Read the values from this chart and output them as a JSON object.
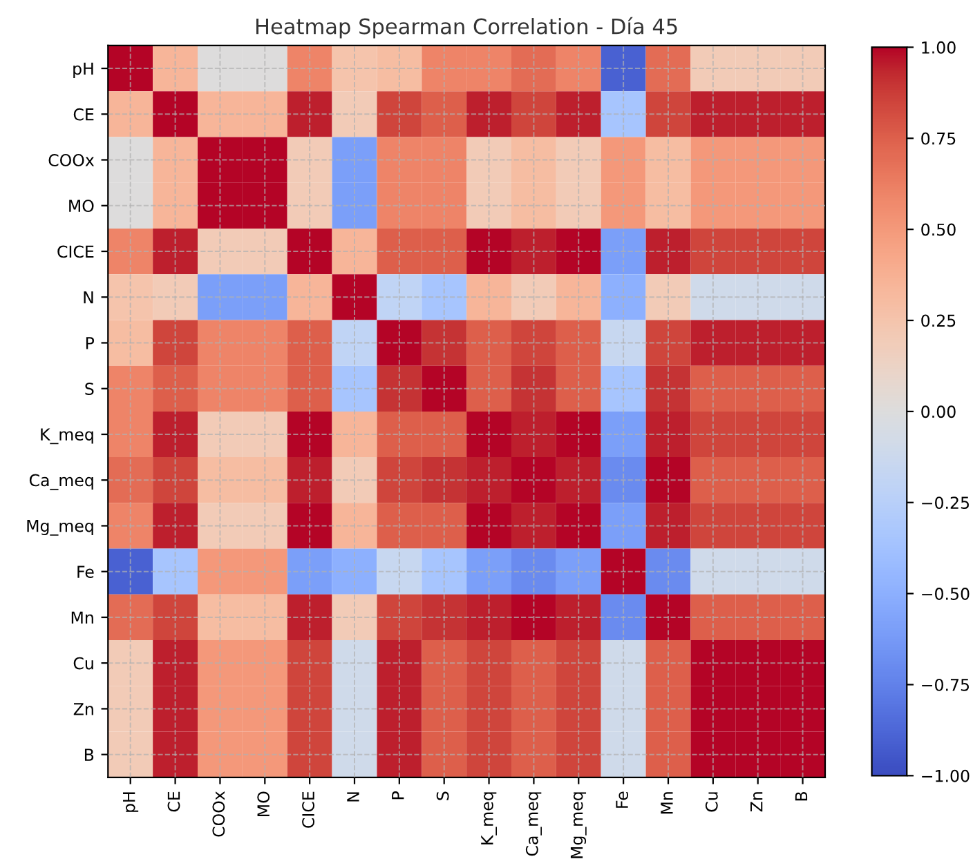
{
  "chart_data": {
    "type": "heatmap",
    "title": "Heatmap Spearman Correlation - Día 45",
    "categories": [
      "pH",
      "CE",
      "COOx",
      "MO",
      "CICE",
      "N",
      "P",
      "S",
      "K_meq",
      "Ca_meq",
      "Mg_meq",
      "Fe",
      "Mn",
      "Cu",
      "Zn",
      "B"
    ],
    "y_categories": [
      "pH",
      "CE",
      "COOx",
      "MO",
      "CICE",
      "N",
      "P",
      "S",
      "K_meq",
      "Ca_meq",
      "Mg_meq",
      "Fe",
      "Mn",
      "Cu",
      "Zn",
      "B"
    ],
    "cells": [
      [
        1,
        0.35,
        0,
        0,
        0.6,
        0.25,
        0.3,
        0.6,
        0.6,
        0.7,
        0.6,
        -0.9,
        0.7,
        0.2,
        0.2,
        0.2
      ],
      [
        0.35,
        1,
        0.35,
        0.35,
        0.95,
        0.2,
        0.85,
        0.75,
        0.95,
        0.85,
        0.95,
        -0.35,
        0.85,
        0.95,
        0.95,
        0.95
      ],
      [
        0,
        0.35,
        1,
        1,
        0.2,
        -0.6,
        0.6,
        0.6,
        0.2,
        0.3,
        0.2,
        0.5,
        0.3,
        0.5,
        0.5,
        0.5
      ],
      [
        0,
        0.35,
        1,
        1,
        0.2,
        -0.6,
        0.6,
        0.6,
        0.2,
        0.3,
        0.2,
        0.5,
        0.3,
        0.5,
        0.5,
        0.5
      ],
      [
        0.6,
        0.95,
        0.2,
        0.2,
        1,
        0.35,
        0.75,
        0.75,
        1,
        0.95,
        1,
        -0.6,
        0.95,
        0.85,
        0.85,
        0.85
      ],
      [
        0.25,
        0.2,
        -0.6,
        -0.6,
        0.35,
        1,
        -0.2,
        -0.35,
        0.35,
        0.2,
        0.35,
        -0.5,
        0.2,
        -0.1,
        -0.1,
        -0.1
      ],
      [
        0.3,
        0.85,
        0.6,
        0.6,
        0.75,
        -0.2,
        1,
        0.9,
        0.75,
        0.85,
        0.75,
        -0.15,
        0.85,
        0.95,
        0.95,
        0.95
      ],
      [
        0.6,
        0.75,
        0.6,
        0.6,
        0.75,
        -0.35,
        0.9,
        1,
        0.75,
        0.9,
        0.75,
        -0.35,
        0.9,
        0.75,
        0.75,
        0.75
      ],
      [
        0.6,
        0.95,
        0.2,
        0.2,
        1,
        0.35,
        0.75,
        0.75,
        1,
        0.95,
        1,
        -0.6,
        0.95,
        0.85,
        0.85,
        0.85
      ],
      [
        0.7,
        0.85,
        0.3,
        0.3,
        0.95,
        0.2,
        0.85,
        0.9,
        0.95,
        1,
        0.95,
        -0.7,
        1,
        0.75,
        0.75,
        0.75
      ],
      [
        0.6,
        0.95,
        0.2,
        0.2,
        1,
        0.35,
        0.75,
        0.75,
        1,
        0.95,
        1,
        -0.6,
        0.95,
        0.85,
        0.85,
        0.85
      ],
      [
        -0.9,
        -0.35,
        0.5,
        0.5,
        -0.6,
        -0.5,
        -0.15,
        -0.35,
        -0.6,
        -0.7,
        -0.6,
        1,
        -0.7,
        -0.1,
        -0.1,
        -0.1
      ],
      [
        0.7,
        0.85,
        0.3,
        0.3,
        0.95,
        0.2,
        0.85,
        0.9,
        0.95,
        1,
        0.95,
        -0.7,
        1,
        0.75,
        0.75,
        0.75
      ],
      [
        0.2,
        0.95,
        0.5,
        0.5,
        0.85,
        -0.1,
        0.95,
        0.75,
        0.85,
        0.75,
        0.85,
        -0.1,
        0.75,
        1,
        1,
        1
      ],
      [
        0.2,
        0.95,
        0.5,
        0.5,
        0.85,
        -0.1,
        0.95,
        0.75,
        0.85,
        0.75,
        0.85,
        -0.1,
        0.75,
        1,
        1,
        1
      ],
      [
        0.2,
        0.95,
        0.5,
        0.5,
        0.85,
        -0.1,
        0.95,
        0.75,
        0.85,
        0.75,
        0.85,
        -0.1,
        0.75,
        1,
        1,
        1
      ]
    ],
    "clim": [
      -1.0,
      1.0
    ],
    "cticks": [
      {
        "value": -1,
        "label": "−1.00"
      },
      {
        "value": -0.75,
        "label": "−0.75"
      },
      {
        "value": -0.5,
        "label": "−0.50"
      },
      {
        "value": -0.25,
        "label": "−0.25"
      },
      {
        "value": 0,
        "label": "0.00"
      },
      {
        "value": 0.25,
        "label": "0.25"
      },
      {
        "value": 0.5,
        "label": "0.50"
      },
      {
        "value": 0.75,
        "label": "0.75"
      },
      {
        "value": 1,
        "label": "1.00"
      }
    ],
    "grid": true
  }
}
